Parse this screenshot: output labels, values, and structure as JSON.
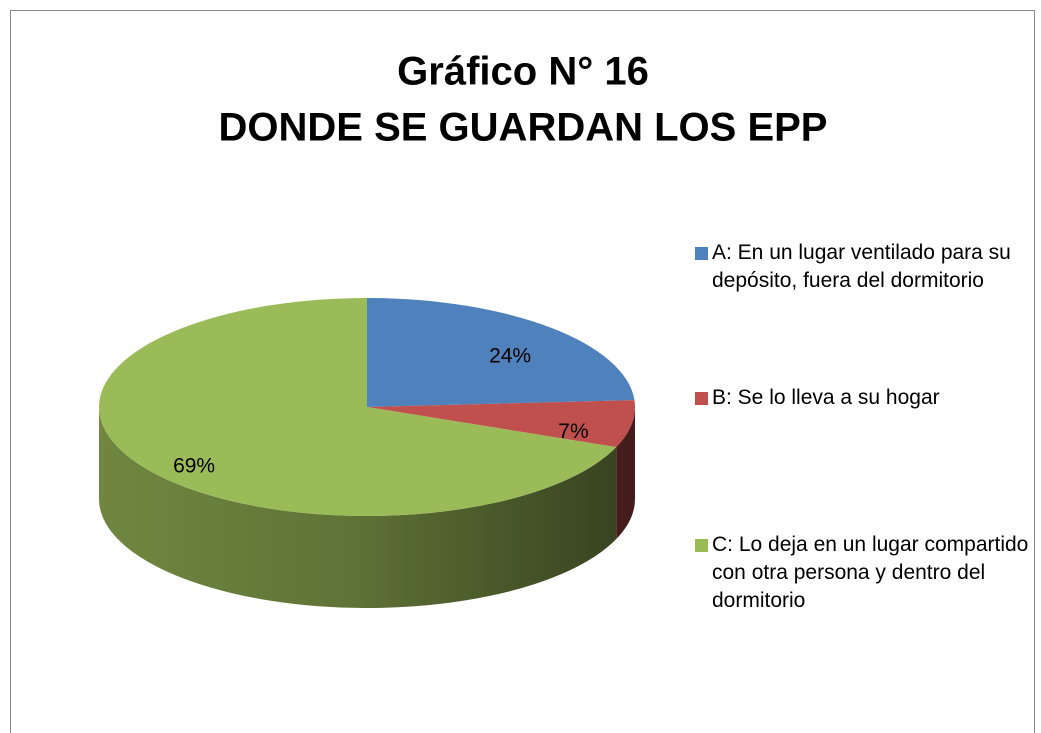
{
  "chart_data": {
    "type": "pie",
    "title": "Gráfico N° 16",
    "subtitle": "DONDE SE GUARDAN LOS EPP",
    "categories": [
      "A: En un lugar ventilado para su depósito, fuera del dormitorio",
      "B: Se lo lleva a su hogar",
      "C: Lo deja en un lugar compartido con otra persona y dentro del dormitorio"
    ],
    "values": [
      24,
      7,
      69
    ],
    "value_labels": [
      "24%",
      "7%",
      "69%"
    ],
    "colors": [
      "#4f81bd",
      "#c0504d",
      "#9bbb59"
    ],
    "legend": "right"
  }
}
